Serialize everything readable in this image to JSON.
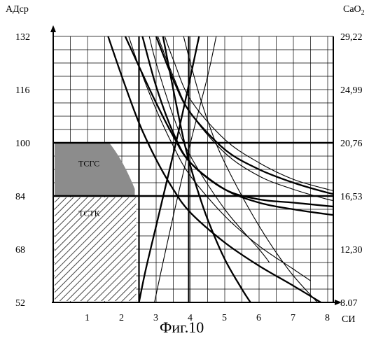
{
  "figure": {
    "caption": "Фиг.10"
  },
  "chart_data": {
    "type": "line",
    "title": "",
    "left_axis": {
      "label": "АДср",
      "ticks": [
        52,
        68,
        84,
        100,
        116,
        132
      ],
      "ylim": [
        52,
        132
      ]
    },
    "right_axis": {
      "label": "CaO",
      "label_subscript": "2",
      "ticks": [
        "8.07",
        "12,30",
        "16,53",
        "20,76",
        "24,99",
        "29,22"
      ]
    },
    "x_axis": {
      "label": "СИ",
      "ticks": [
        1,
        2,
        3,
        4,
        5,
        6,
        7,
        8
      ],
      "xlim": [
        0,
        8.5
      ]
    },
    "grid": true,
    "reference_lines": {
      "horizontal": [
        84,
        100
      ],
      "vertical": [
        2.5,
        3.95
      ]
    },
    "regions": [
      {
        "name": "ТСГС",
        "label": "ТСГС",
        "fill": "#8c8c8c",
        "y_range": [
          84,
          100
        ]
      },
      {
        "name": "ТСТК",
        "label": "ТСТК",
        "pattern": "diagonal-hatch",
        "y_range": [
          52,
          84
        ]
      }
    ],
    "series": [
      {
        "style": "thick",
        "points": [
          [
            1.6,
            132
          ],
          [
            2.0,
            120
          ],
          [
            2.5,
            106
          ],
          [
            3.0,
            95
          ],
          [
            3.5,
            86
          ],
          [
            4.0,
            79
          ],
          [
            5.0,
            70
          ],
          [
            6.0,
            63
          ],
          [
            7.0,
            57
          ],
          [
            7.8,
            52
          ]
        ]
      },
      {
        "style": "thick",
        "points": [
          [
            2.1,
            132
          ],
          [
            2.5,
            123
          ],
          [
            3.0,
            112
          ],
          [
            3.5,
            102
          ],
          [
            4.0,
            94
          ],
          [
            5.0,
            86
          ],
          [
            6.0,
            82
          ],
          [
            7.0,
            80
          ],
          [
            8.0,
            78.5
          ],
          [
            8.5,
            78
          ]
        ]
      },
      {
        "style": "thick",
        "points": [
          [
            2.6,
            132
          ],
          [
            3.0,
            117
          ],
          [
            3.5,
            103
          ],
          [
            4.0,
            94
          ],
          [
            5.0,
            86
          ],
          [
            6.0,
            83
          ],
          [
            7.0,
            82
          ],
          [
            8.0,
            81
          ],
          [
            8.5,
            80.5
          ]
        ]
      },
      {
        "style": "thick",
        "points": [
          [
            3.0,
            132
          ],
          [
            3.5,
            119
          ],
          [
            4.0,
            109
          ],
          [
            5.0,
            98
          ],
          [
            6.0,
            92
          ],
          [
            7.0,
            88
          ],
          [
            8.0,
            85
          ],
          [
            8.5,
            84
          ]
        ]
      },
      {
        "style": "thick",
        "points": [
          [
            3.2,
            132
          ],
          [
            3.5,
            116
          ],
          [
            3.8,
            101
          ],
          [
            4.0,
            93
          ],
          [
            4.2,
            86
          ],
          [
            4.5,
            77
          ],
          [
            5.0,
            65
          ],
          [
            5.5,
            56
          ],
          [
            5.75,
            52
          ]
        ]
      },
      {
        "style": "thin",
        "points": [
          [
            2.2,
            132
          ],
          [
            2.5,
            123
          ],
          [
            3.0,
            110
          ],
          [
            3.5,
            99
          ],
          [
            4.0,
            90
          ],
          [
            5.0,
            78
          ],
          [
            6.0,
            69
          ],
          [
            7.0,
            62
          ],
          [
            7.5,
            58.5
          ]
        ]
      },
      {
        "style": "thin",
        "points": [
          [
            2.8,
            132
          ],
          [
            3.0,
            124
          ],
          [
            3.5,
            108
          ],
          [
            4.0,
            96
          ],
          [
            5.0,
            80
          ],
          [
            6.0,
            68
          ],
          [
            6.3,
            64
          ]
        ]
      },
      {
        "style": "thin",
        "points": [
          [
            3.05,
            132
          ],
          [
            3.5,
            120
          ],
          [
            4.0,
            109
          ],
          [
            5.0,
            97
          ],
          [
            6.0,
            90
          ],
          [
            7.0,
            86
          ],
          [
            8.0,
            83
          ],
          [
            8.5,
            82
          ]
        ]
      },
      {
        "style": "thin",
        "points": [
          [
            3.25,
            132
          ],
          [
            3.5,
            125
          ],
          [
            4.0,
            113
          ],
          [
            5.0,
            101
          ],
          [
            6.0,
            94
          ],
          [
            7.0,
            89
          ],
          [
            8.0,
            86
          ],
          [
            8.5,
            85
          ]
        ]
      },
      {
        "style": "thin",
        "points": [
          [
            3.8,
            132
          ],
          [
            4.0,
            124
          ],
          [
            4.3,
            113
          ],
          [
            4.7,
            101
          ],
          [
            5.0,
            94
          ],
          [
            5.5,
            84
          ],
          [
            6.0,
            75
          ],
          [
            6.5,
            67
          ],
          [
            7.0,
            60
          ],
          [
            7.7,
            52
          ]
        ]
      },
      {
        "style": "thick",
        "points": [
          [
            2.5,
            52
          ],
          [
            2.7,
            62
          ],
          [
            3.0,
            75
          ],
          [
            3.3,
            88
          ],
          [
            3.6,
            101
          ],
          [
            3.9,
            115
          ],
          [
            4.25,
            132
          ]
        ]
      },
      {
        "style": "thin",
        "points": [
          [
            2.95,
            52
          ],
          [
            3.2,
            64
          ],
          [
            3.5,
            78
          ],
          [
            4.0,
            100
          ],
          [
            4.5,
            120
          ],
          [
            4.75,
            132
          ]
        ]
      }
    ]
  }
}
